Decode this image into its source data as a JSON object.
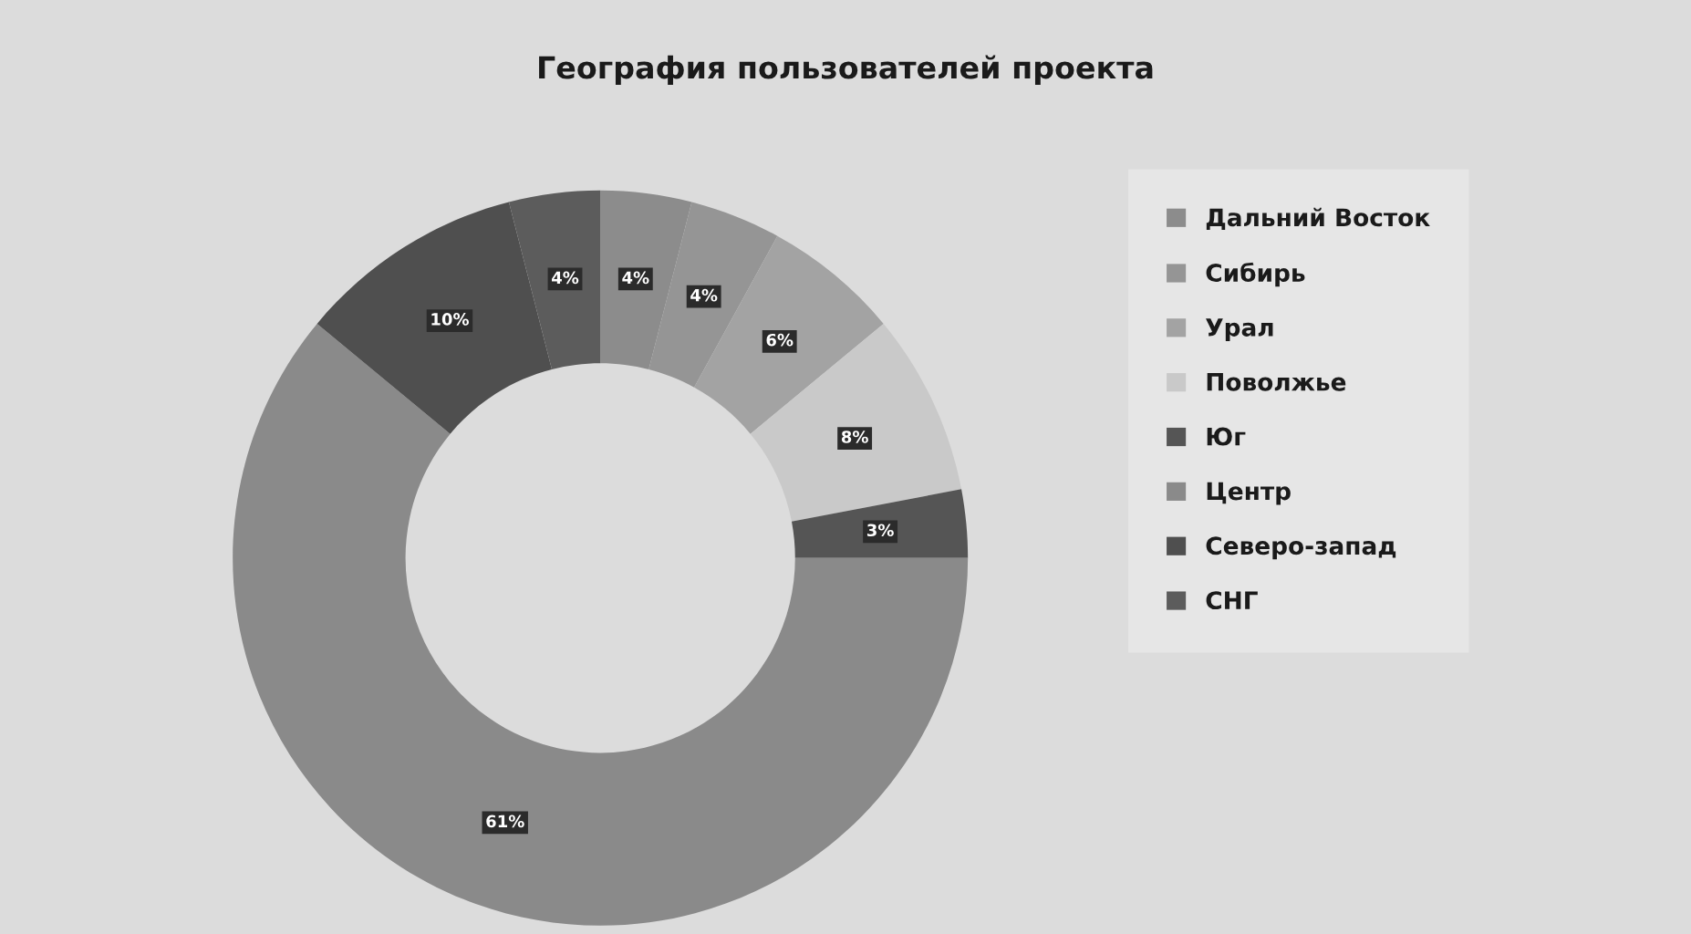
{
  "chart_data": {
    "type": "donut",
    "title": "География пользователей проекта",
    "categories": [
      "Дальний Восток",
      "Сибирь",
      "Урал",
      "Поволжье",
      "Юг",
      "Центр",
      "Северо-запад",
      "СНГ"
    ],
    "values": [
      4,
      4,
      6,
      8,
      3,
      61,
      10,
      4
    ],
    "value_labels": [
      "4%",
      "4%",
      "6%",
      "8%",
      "3%",
      "61%",
      "10%",
      "4%"
    ],
    "colors": [
      "#8c8c8c",
      "#959595",
      "#a3a3a3",
      "#c9c9c9",
      "#555555",
      "#8a8a8a",
      "#4f4f4f",
      "#5c5c5c"
    ],
    "legend": "right"
  }
}
